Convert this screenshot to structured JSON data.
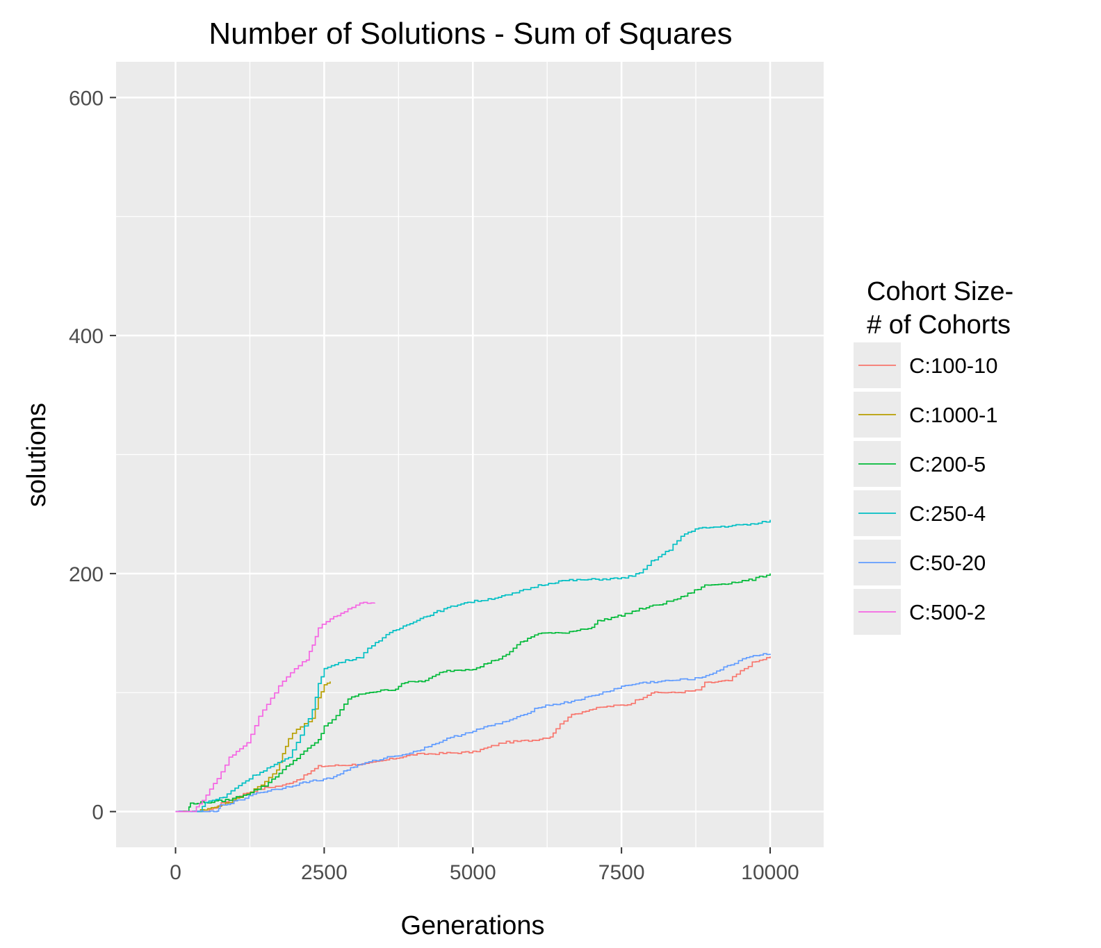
{
  "chart_data": {
    "type": "line",
    "title": "Number of Solutions - Sum of Squares",
    "xlabel": "Generations",
    "ylabel": "solutions",
    "xlim": [
      -1000,
      10900
    ],
    "ylim": [
      -30,
      630
    ],
    "x_ticks": [
      0,
      2500,
      5000,
      7500,
      10000
    ],
    "x_tick_labels": [
      "0",
      "2500",
      "5000",
      "7500",
      "10000"
    ],
    "y_ticks": [
      0,
      200,
      400,
      600
    ],
    "y_tick_labels": [
      "0",
      "200",
      "400",
      "600"
    ],
    "grid": true,
    "legend": {
      "title_lines": [
        "Cohort Size-",
        "# of Cohorts"
      ],
      "placement": "right"
    },
    "series": [
      {
        "name": "C:100-10",
        "color": "#F8766D",
        "points": [
          [
            0,
            0
          ],
          [
            500,
            0
          ],
          [
            700,
            5
          ],
          [
            900,
            10
          ],
          [
            1200,
            16
          ],
          [
            1500,
            20
          ],
          [
            1800,
            22
          ],
          [
            2100,
            28
          ],
          [
            2400,
            38
          ],
          [
            2800,
            39
          ],
          [
            3200,
            40
          ],
          [
            3600,
            44
          ],
          [
            4000,
            48
          ],
          [
            4500,
            49
          ],
          [
            5000,
            50
          ],
          [
            5500,
            58
          ],
          [
            6000,
            60
          ],
          [
            6300,
            63
          ],
          [
            6400,
            70
          ],
          [
            6600,
            80
          ],
          [
            6900,
            85
          ],
          [
            7200,
            88
          ],
          [
            7600,
            90
          ],
          [
            7800,
            95
          ],
          [
            8000,
            100
          ],
          [
            8400,
            100
          ],
          [
            8800,
            102
          ],
          [
            8900,
            108
          ],
          [
            9300,
            110
          ],
          [
            9500,
            118
          ],
          [
            9700,
            125
          ],
          [
            10000,
            130
          ]
        ]
      },
      {
        "name": "C:1000-1",
        "color": "#B79F00",
        "points": [
          [
            0,
            0
          ],
          [
            300,
            0
          ],
          [
            600,
            3
          ],
          [
            900,
            8
          ],
          [
            1200,
            15
          ],
          [
            1500,
            25
          ],
          [
            1700,
            35
          ],
          [
            1800,
            48
          ],
          [
            1900,
            62
          ],
          [
            2100,
            72
          ],
          [
            2300,
            78
          ],
          [
            2400,
            95
          ],
          [
            2500,
            106
          ],
          [
            2600,
            110
          ]
        ]
      },
      {
        "name": "C:200-5",
        "color": "#00BA38",
        "points": [
          [
            0,
            0
          ],
          [
            200,
            0
          ],
          [
            250,
            7
          ],
          [
            600,
            8
          ],
          [
            900,
            10
          ],
          [
            1200,
            15
          ],
          [
            1500,
            22
          ],
          [
            1800,
            35
          ],
          [
            2100,
            48
          ],
          [
            2400,
            60
          ],
          [
            2500,
            72
          ],
          [
            2700,
            80
          ],
          [
            2900,
            95
          ],
          [
            3200,
            100
          ],
          [
            3700,
            103
          ],
          [
            3800,
            108
          ],
          [
            4200,
            110
          ],
          [
            4500,
            118
          ],
          [
            5000,
            120
          ],
          [
            5500,
            130
          ],
          [
            5800,
            142
          ],
          [
            6100,
            150
          ],
          [
            6500,
            150
          ],
          [
            7000,
            155
          ],
          [
            7100,
            160
          ],
          [
            7500,
            165
          ],
          [
            7800,
            170
          ],
          [
            8200,
            175
          ],
          [
            8500,
            180
          ],
          [
            8900,
            190
          ],
          [
            9300,
            192
          ],
          [
            9700,
            195
          ],
          [
            10000,
            200
          ]
        ]
      },
      {
        "name": "C:250-4",
        "color": "#00BFC4",
        "points": [
          [
            0,
            0
          ],
          [
            400,
            0
          ],
          [
            500,
            8
          ],
          [
            800,
            12
          ],
          [
            1000,
            20
          ],
          [
            1300,
            30
          ],
          [
            1600,
            38
          ],
          [
            1900,
            45
          ],
          [
            2100,
            65
          ],
          [
            2300,
            85
          ],
          [
            2400,
            108
          ],
          [
            2500,
            120
          ],
          [
            2800,
            126
          ],
          [
            3100,
            130
          ],
          [
            3300,
            140
          ],
          [
            3600,
            150
          ],
          [
            4000,
            160
          ],
          [
            4400,
            168
          ],
          [
            4800,
            175
          ],
          [
            5200,
            178
          ],
          [
            5600,
            182
          ],
          [
            6100,
            190
          ],
          [
            6500,
            194
          ],
          [
            7000,
            195
          ],
          [
            7500,
            196
          ],
          [
            7800,
            200
          ],
          [
            8000,
            210
          ],
          [
            8300,
            220
          ],
          [
            8500,
            232
          ],
          [
            8800,
            238
          ],
          [
            9300,
            240
          ],
          [
            9800,
            242
          ],
          [
            10000,
            245
          ]
        ]
      },
      {
        "name": "C:50-20",
        "color": "#619CFF",
        "points": [
          [
            0,
            0
          ],
          [
            700,
            0
          ],
          [
            750,
            5
          ],
          [
            1100,
            10
          ],
          [
            1300,
            15
          ],
          [
            1800,
            20
          ],
          [
            2200,
            25
          ],
          [
            2600,
            28
          ],
          [
            3000,
            38
          ],
          [
            3500,
            45
          ],
          [
            4000,
            50
          ],
          [
            4500,
            60
          ],
          [
            5000,
            68
          ],
          [
            5500,
            75
          ],
          [
            5800,
            80
          ],
          [
            6100,
            88
          ],
          [
            6600,
            92
          ],
          [
            7000,
            97
          ],
          [
            7500,
            105
          ],
          [
            7800,
            108
          ],
          [
            8300,
            110
          ],
          [
            8800,
            112
          ],
          [
            9100,
            118
          ],
          [
            9400,
            125
          ],
          [
            9600,
            130
          ],
          [
            10000,
            133
          ]
        ]
      },
      {
        "name": "C:500-2",
        "color": "#F564E3",
        "points": [
          [
            0,
            0
          ],
          [
            300,
            0
          ],
          [
            450,
            10
          ],
          [
            700,
            28
          ],
          [
            900,
            45
          ],
          [
            1200,
            58
          ],
          [
            1400,
            80
          ],
          [
            1600,
            95
          ],
          [
            1800,
            110
          ],
          [
            2000,
            120
          ],
          [
            2200,
            128
          ],
          [
            2300,
            140
          ],
          [
            2400,
            155
          ],
          [
            2600,
            162
          ],
          [
            2900,
            170
          ],
          [
            3100,
            175
          ],
          [
            3350,
            176
          ]
        ]
      }
    ]
  }
}
